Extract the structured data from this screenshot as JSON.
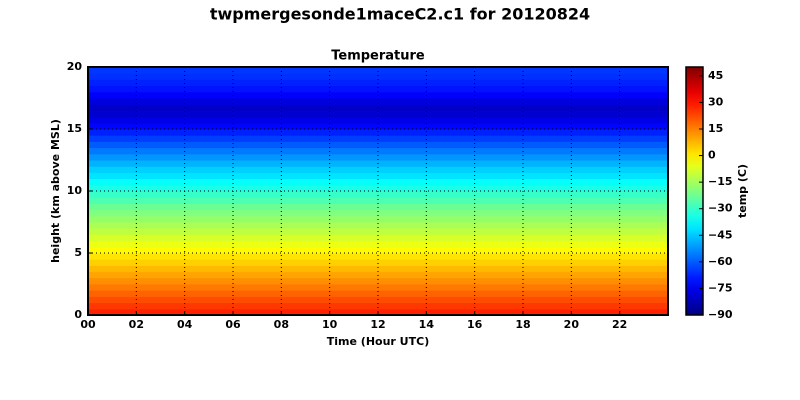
{
  "chart_data": {
    "type": "heatmap",
    "title": "twpmergesonde1maceC2.c1 for 20120824",
    "subtitle": "Temperature",
    "x_label": "Time (Hour UTC)",
    "y_label": "height (km above MSL)",
    "colorbar_label": "temp (C)",
    "colormap": "jet",
    "xlim": [
      0,
      24
    ],
    "xticks": [
      {
        "value": 0,
        "label": "00"
      },
      {
        "value": 2,
        "label": "02"
      },
      {
        "value": 4,
        "label": "04"
      },
      {
        "value": 6,
        "label": "06"
      },
      {
        "value": 8,
        "label": "08"
      },
      {
        "value": 10,
        "label": "10"
      },
      {
        "value": 12,
        "label": "12"
      },
      {
        "value": 14,
        "label": "14"
      },
      {
        "value": 16,
        "label": "16"
      },
      {
        "value": 18,
        "label": "18"
      },
      {
        "value": 20,
        "label": "20"
      },
      {
        "value": 22,
        "label": "22"
      }
    ],
    "ylim": [
      0,
      20
    ],
    "yticks": [
      0,
      5,
      10,
      15,
      20
    ],
    "clim": [
      -90,
      50
    ],
    "cticks": [
      {
        "value": -90,
        "label": "−90"
      },
      {
        "value": -75,
        "label": "−75"
      },
      {
        "value": -60,
        "label": "−60"
      },
      {
        "value": -45,
        "label": "−45"
      },
      {
        "value": -30,
        "label": "−30"
      },
      {
        "value": -15,
        "label": "−15"
      },
      0,
      15,
      30,
      45
    ],
    "grid": true,
    "y_bins": [
      0,
      0.5,
      1,
      1.5,
      2,
      2.5,
      3,
      3.5,
      4,
      4.5,
      5,
      5.5,
      6,
      6.5,
      7,
      7.5,
      8,
      8.5,
      9,
      9.5,
      10,
      10.5,
      11,
      11.5,
      12,
      12.5,
      13,
      13.5,
      14,
      14.5,
      15,
      15.5,
      16,
      16.5,
      17,
      17.5,
      18,
      18.5,
      19,
      19.5,
      20
    ],
    "values": [
      28,
      25,
      22,
      19,
      16,
      13,
      10,
      7,
      4,
      1,
      -2,
      -5,
      -8,
      -11,
      -14,
      -17,
      -20,
      -23,
      -27,
      -30,
      -34,
      -37,
      -41,
      -44,
      -48,
      -52,
      -56,
      -60,
      -64,
      -68,
      -72,
      -76,
      -79,
      -80,
      -77,
      -73,
      -70,
      -68,
      -66,
      -65
    ]
  }
}
